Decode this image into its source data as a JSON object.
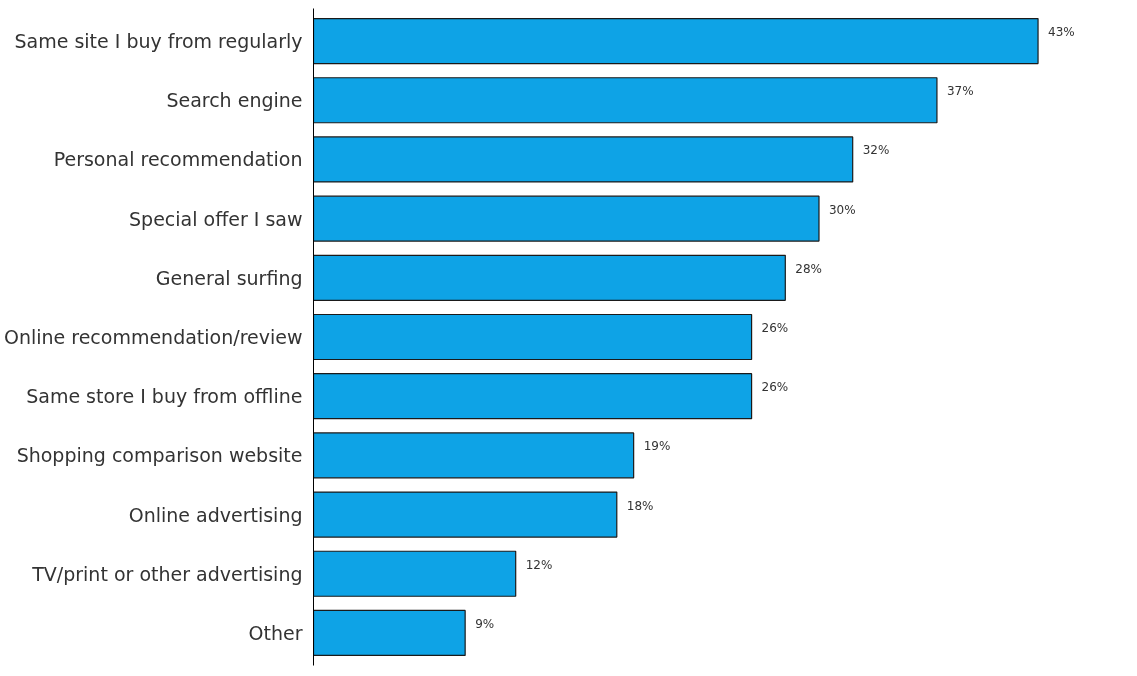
{
  "chart_data": {
    "type": "bar",
    "orientation": "horizontal",
    "categories": [
      "Same site I buy from regularly",
      "Search engine",
      "Personal recommendation",
      "Special offer I saw",
      "General surfing",
      "Online recommendation/review",
      "Same store I buy from offline",
      "Shopping comparison website",
      "Online advertising",
      "TV/print or other advertising",
      "Other"
    ],
    "values": [
      43,
      37,
      32,
      30,
      28,
      26,
      26,
      19,
      18,
      12,
      9
    ],
    "value_labels": [
      "43%",
      "37%",
      "32%",
      "30%",
      "28%",
      "26%",
      "26%",
      "19%",
      "18%",
      "12%",
      "9%"
    ],
    "color": "#0ea3e6",
    "grid": false
  }
}
